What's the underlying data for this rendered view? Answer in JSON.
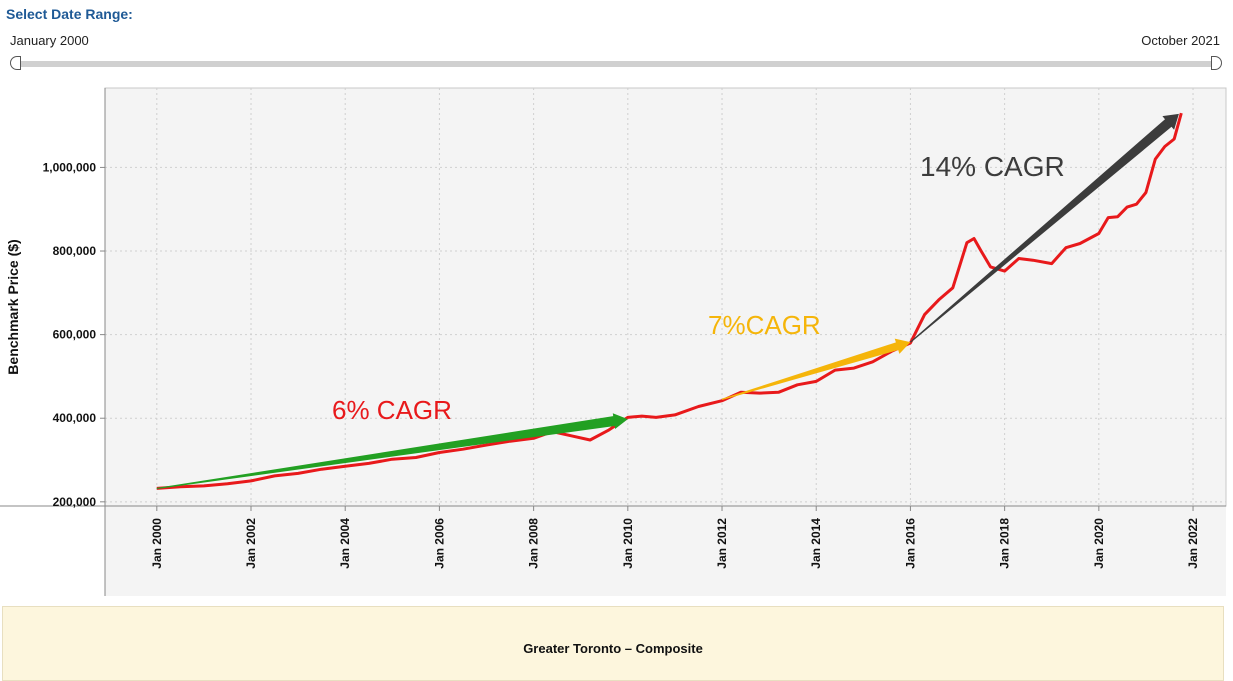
{
  "range": {
    "title": "Select Date Range",
    "start_label": "January 2000",
    "end_label": "October 2021"
  },
  "footer": {
    "label": "Greater Toronto – Composite"
  },
  "colors": {
    "price_line": "#e8191b",
    "cagr_6": "#22a022",
    "cagr_7": "#f5b50a",
    "cagr_14": "#3c3c3c",
    "label_6": "#e8191b",
    "label_7": "#f5b50a",
    "label_14": "#3c3c3c",
    "plot_bg": "#f4f4f4"
  },
  "chart_data": {
    "type": "line",
    "title": "",
    "xlabel": "",
    "ylabel": "Benchmark Price ($)",
    "x_range": [
      1998.9,
      2022.7
    ],
    "ylim": [
      190000,
      1190000
    ],
    "x_ticks": [
      {
        "value": 2000,
        "label": "Jan 2000"
      },
      {
        "value": 2002,
        "label": "Jan 2002"
      },
      {
        "value": 2004,
        "label": "Jan 2004"
      },
      {
        "value": 2006,
        "label": "Jan 2006"
      },
      {
        "value": 2008,
        "label": "Jan 2008"
      },
      {
        "value": 2010,
        "label": "Jan 2010"
      },
      {
        "value": 2012,
        "label": "Jan 2012"
      },
      {
        "value": 2014,
        "label": "Jan 2014"
      },
      {
        "value": 2016,
        "label": "Jan 2016"
      },
      {
        "value": 2018,
        "label": "Jan 2018"
      },
      {
        "value": 2020,
        "label": "Jan 2020"
      },
      {
        "value": 2022,
        "label": "Jan 2022"
      }
    ],
    "y_ticks": [
      {
        "value": 200000,
        "label": "200,000"
      },
      {
        "value": 400000,
        "label": "400,000"
      },
      {
        "value": 600000,
        "label": "600,000"
      },
      {
        "value": 800000,
        "label": "800,000"
      },
      {
        "value": 1000000,
        "label": "1,000,000"
      }
    ],
    "grid": true,
    "series": [
      {
        "x": [
          2000.0,
          2000.5,
          2001.0,
          2001.5,
          2002.0,
          2002.5,
          2003.0,
          2003.5,
          2004.0,
          2004.5,
          2005.0,
          2005.5,
          2006.0,
          2006.5,
          2007.0,
          2007.5,
          2008.0,
          2008.4,
          2008.8,
          2009.2,
          2009.6,
          2010.0,
          2010.3,
          2010.6,
          2011.0,
          2011.5,
          2012.0,
          2012.4,
          2012.8,
          2013.2,
          2013.6,
          2014.0,
          2014.4,
          2014.8,
          2015.2,
          2015.6,
          2016.0,
          2016.3,
          2016.6,
          2016.9,
          2017.2,
          2017.35,
          2017.5,
          2017.7,
          2018.0,
          2018.3,
          2018.6,
          2019.0,
          2019.3,
          2019.6,
          2020.0,
          2020.2,
          2020.4,
          2020.6,
          2020.8,
          2021.0,
          2021.2,
          2021.4,
          2021.6,
          2021.75
        ],
        "y": [
          232000,
          236000,
          238000,
          243000,
          250000,
          262000,
          268000,
          278000,
          285000,
          292000,
          302000,
          306000,
          318000,
          326000,
          336000,
          345000,
          352000,
          368000,
          358000,
          348000,
          372000,
          402000,
          405000,
          402000,
          408000,
          428000,
          442000,
          462000,
          460000,
          462000,
          480000,
          488000,
          515000,
          520000,
          535000,
          560000,
          580000,
          648000,
          683000,
          712000,
          820000,
          830000,
          800000,
          762000,
          752000,
          782000,
          778000,
          770000,
          808000,
          818000,
          842000,
          880000,
          882000,
          905000,
          912000,
          940000,
          1020000,
          1050000,
          1068000,
          1130000
        ]
      }
    ],
    "annotations": [
      {
        "text": "6% CAGR",
        "x_from": 2000.0,
        "y_from": 232000,
        "x_to": 2010.0,
        "y_to": 398000
      },
      {
        "text": "7%CAGR",
        "x_from": 2012.0,
        "y_from": 445000,
        "x_to": 2016.0,
        "y_to": 582000
      },
      {
        "text": "14% CAGR",
        "x_from": 2016.0,
        "y_from": 582000,
        "x_to": 2021.7,
        "y_to": 1128000
      }
    ]
  }
}
